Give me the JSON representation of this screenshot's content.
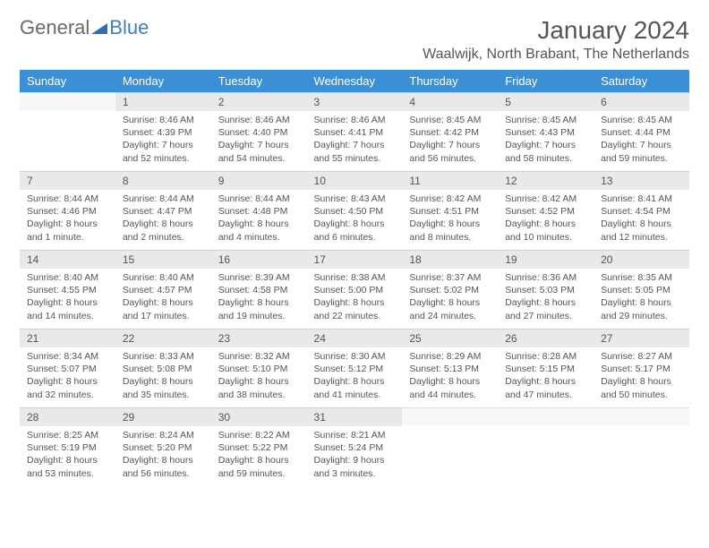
{
  "logo": {
    "part1": "General",
    "part2": "Blue"
  },
  "title": "January 2024",
  "location": "Waalwijk, North Brabant, The Netherlands",
  "header_bg": "#3b8fd4",
  "daynum_bg": "#e9e9e9",
  "days_of_week": [
    "Sunday",
    "Monday",
    "Tuesday",
    "Wednesday",
    "Thursday",
    "Friday",
    "Saturday"
  ],
  "start_offset": 1,
  "days": [
    {
      "n": 1,
      "sr": "8:46 AM",
      "ss": "4:39 PM",
      "dl": "7 hours and 52 minutes."
    },
    {
      "n": 2,
      "sr": "8:46 AM",
      "ss": "4:40 PM",
      "dl": "7 hours and 54 minutes."
    },
    {
      "n": 3,
      "sr": "8:46 AM",
      "ss": "4:41 PM",
      "dl": "7 hours and 55 minutes."
    },
    {
      "n": 4,
      "sr": "8:45 AM",
      "ss": "4:42 PM",
      "dl": "7 hours and 56 minutes."
    },
    {
      "n": 5,
      "sr": "8:45 AM",
      "ss": "4:43 PM",
      "dl": "7 hours and 58 minutes."
    },
    {
      "n": 6,
      "sr": "8:45 AM",
      "ss": "4:44 PM",
      "dl": "7 hours and 59 minutes."
    },
    {
      "n": 7,
      "sr": "8:44 AM",
      "ss": "4:46 PM",
      "dl": "8 hours and 1 minute."
    },
    {
      "n": 8,
      "sr": "8:44 AM",
      "ss": "4:47 PM",
      "dl": "8 hours and 2 minutes."
    },
    {
      "n": 9,
      "sr": "8:44 AM",
      "ss": "4:48 PM",
      "dl": "8 hours and 4 minutes."
    },
    {
      "n": 10,
      "sr": "8:43 AM",
      "ss": "4:50 PM",
      "dl": "8 hours and 6 minutes."
    },
    {
      "n": 11,
      "sr": "8:42 AM",
      "ss": "4:51 PM",
      "dl": "8 hours and 8 minutes."
    },
    {
      "n": 12,
      "sr": "8:42 AM",
      "ss": "4:52 PM",
      "dl": "8 hours and 10 minutes."
    },
    {
      "n": 13,
      "sr": "8:41 AM",
      "ss": "4:54 PM",
      "dl": "8 hours and 12 minutes."
    },
    {
      "n": 14,
      "sr": "8:40 AM",
      "ss": "4:55 PM",
      "dl": "8 hours and 14 minutes."
    },
    {
      "n": 15,
      "sr": "8:40 AM",
      "ss": "4:57 PM",
      "dl": "8 hours and 17 minutes."
    },
    {
      "n": 16,
      "sr": "8:39 AM",
      "ss": "4:58 PM",
      "dl": "8 hours and 19 minutes."
    },
    {
      "n": 17,
      "sr": "8:38 AM",
      "ss": "5:00 PM",
      "dl": "8 hours and 22 minutes."
    },
    {
      "n": 18,
      "sr": "8:37 AM",
      "ss": "5:02 PM",
      "dl": "8 hours and 24 minutes."
    },
    {
      "n": 19,
      "sr": "8:36 AM",
      "ss": "5:03 PM",
      "dl": "8 hours and 27 minutes."
    },
    {
      "n": 20,
      "sr": "8:35 AM",
      "ss": "5:05 PM",
      "dl": "8 hours and 29 minutes."
    },
    {
      "n": 21,
      "sr": "8:34 AM",
      "ss": "5:07 PM",
      "dl": "8 hours and 32 minutes."
    },
    {
      "n": 22,
      "sr": "8:33 AM",
      "ss": "5:08 PM",
      "dl": "8 hours and 35 minutes."
    },
    {
      "n": 23,
      "sr": "8:32 AM",
      "ss": "5:10 PM",
      "dl": "8 hours and 38 minutes."
    },
    {
      "n": 24,
      "sr": "8:30 AM",
      "ss": "5:12 PM",
      "dl": "8 hours and 41 minutes."
    },
    {
      "n": 25,
      "sr": "8:29 AM",
      "ss": "5:13 PM",
      "dl": "8 hours and 44 minutes."
    },
    {
      "n": 26,
      "sr": "8:28 AM",
      "ss": "5:15 PM",
      "dl": "8 hours and 47 minutes."
    },
    {
      "n": 27,
      "sr": "8:27 AM",
      "ss": "5:17 PM",
      "dl": "8 hours and 50 minutes."
    },
    {
      "n": 28,
      "sr": "8:25 AM",
      "ss": "5:19 PM",
      "dl": "8 hours and 53 minutes."
    },
    {
      "n": 29,
      "sr": "8:24 AM",
      "ss": "5:20 PM",
      "dl": "8 hours and 56 minutes."
    },
    {
      "n": 30,
      "sr": "8:22 AM",
      "ss": "5:22 PM",
      "dl": "8 hours and 59 minutes."
    },
    {
      "n": 31,
      "sr": "8:21 AM",
      "ss": "5:24 PM",
      "dl": "9 hours and 3 minutes."
    }
  ],
  "labels": {
    "sunrise": "Sunrise:",
    "sunset": "Sunset:",
    "daylight": "Daylight:"
  }
}
